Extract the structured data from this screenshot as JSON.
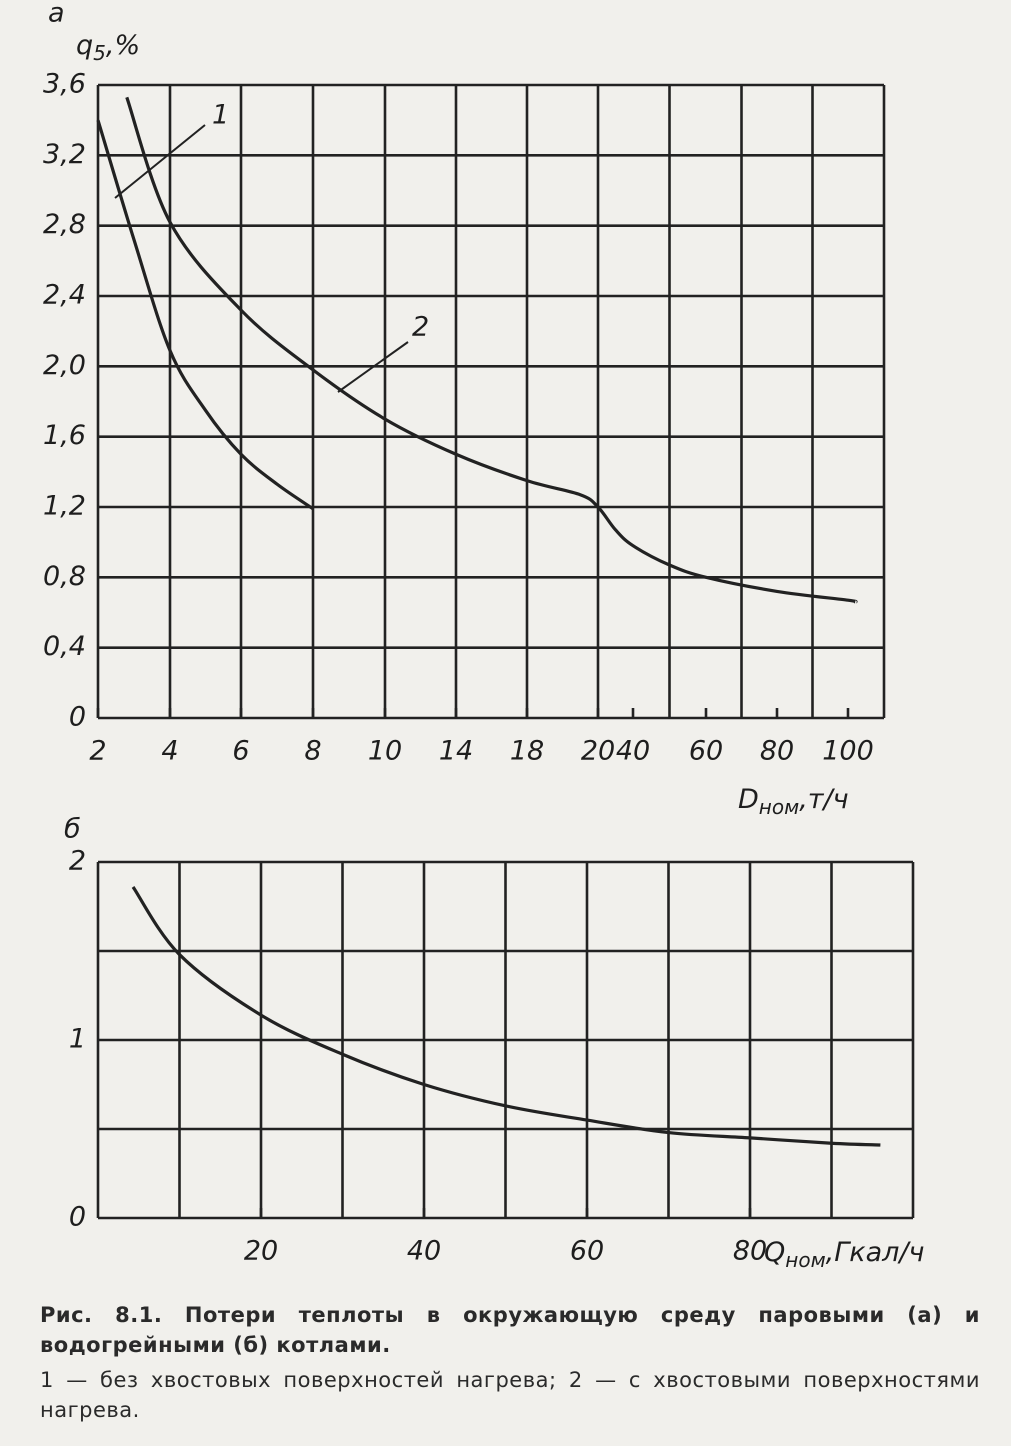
{
  "chart_data": [
    {
      "type": "line",
      "panel_label": "а",
      "ylabel": "q",
      "ylabel_sub": "5",
      "ylabel_unit": ",%",
      "xlabel": "D",
      "xlabel_sub": "ном",
      "xlabel_unit": ",т/ч",
      "xlim": [
        2,
        110
      ],
      "ylim": [
        0,
        3.6
      ],
      "xticks": [
        2,
        4,
        6,
        8,
        10,
        14,
        18,
        20,
        40,
        60,
        80,
        100
      ],
      "xgrid": [
        2,
        4,
        6,
        8,
        10,
        14,
        18,
        20,
        50,
        70,
        90,
        110
      ],
      "yticks": [
        0,
        {
          "value": 0.4,
          "label": "0,4"
        },
        {
          "value": 0.8,
          "label": "0,8"
        },
        {
          "value": 1.2,
          "label": "1,2"
        },
        {
          "value": 1.6,
          "label": "1,6"
        },
        {
          "value": 2.0,
          "label": "2,0"
        },
        {
          "value": 2.4,
          "label": "2,4"
        },
        {
          "value": 2.8,
          "label": "2,8"
        },
        {
          "value": 3.2,
          "label": "3,2"
        },
        {
          "value": 3.6,
          "label": "3,6"
        }
      ],
      "color": "#222222",
      "grid": true,
      "series": [
        {
          "name": "1",
          "color": "#222222",
          "x": [
            2,
            3,
            4,
            5,
            6,
            7,
            8
          ],
          "values": [
            3.4,
            2.72,
            2.09,
            1.75,
            1.5,
            1.33,
            1.19
          ]
        },
        {
          "name": "2",
          "color": "#222222",
          "x": [
            2.8,
            4,
            6,
            8,
            10,
            14,
            18,
            19.5,
            20,
            30,
            40,
            50,
            60,
            80,
            100,
            102
          ],
          "values": [
            3.53,
            2.82,
            2.32,
            1.98,
            1.7,
            1.5,
            1.35,
            1.27,
            1.2,
            1.07,
            0.98,
            0.87,
            0.8,
            0.72,
            0.67,
            0.66
          ]
        }
      ]
    },
    {
      "type": "line",
      "panel_label": "б",
      "xlabel": "Q",
      "xlabel_sub": "ном",
      "xlabel_unit": ",Гкал/ч",
      "xlim": [
        0,
        100
      ],
      "ylim": [
        0,
        2
      ],
      "xticks": [
        20,
        40,
        60,
        80
      ],
      "xgrid": [
        0,
        10,
        20,
        30,
        40,
        50,
        60,
        70,
        80,
        90,
        100
      ],
      "yticks": [
        0,
        1,
        2
      ],
      "ygrid": [
        0,
        0.5,
        1,
        1.5,
        2
      ],
      "grid": true,
      "series": [
        {
          "color": "#222222",
          "x": [
            4.3,
            10,
            20,
            30,
            40,
            50,
            60,
            70,
            80,
            90,
            96
          ],
          "values": [
            1.86,
            1.48,
            1.14,
            0.92,
            0.75,
            0.63,
            0.55,
            0.48,
            0.45,
            0.42,
            0.41
          ]
        }
      ]
    }
  ],
  "caption": {
    "title": "Рис. 8.1. Потери теплоты в окружающую среду паровыми (а) и водогрейными (б) котлами.",
    "note": "1 — без хвостовых поверхностей нагрева; 2 — с хвостовыми поверхностями нагрева."
  }
}
